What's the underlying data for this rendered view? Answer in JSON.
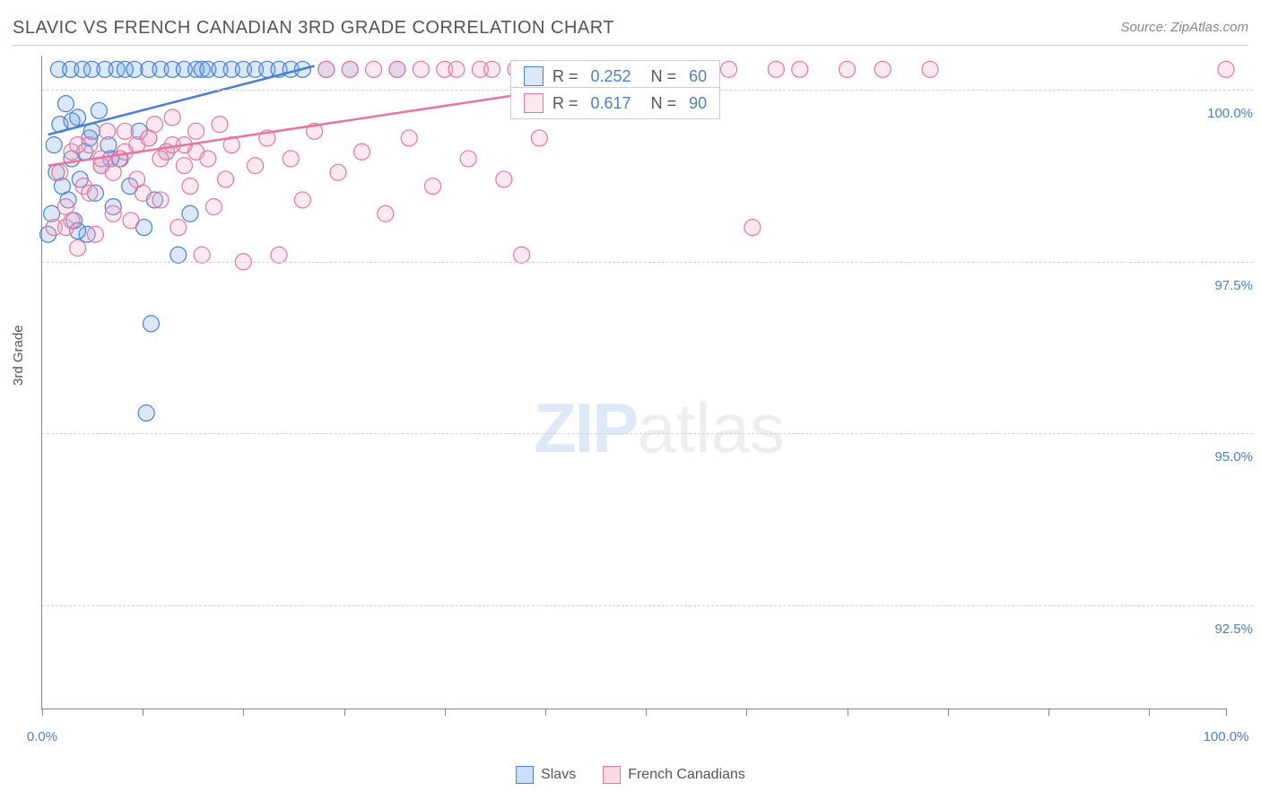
{
  "title": "SLAVIC VS FRENCH CANADIAN 3RD GRADE CORRELATION CHART",
  "source": "Source: ZipAtlas.com",
  "watermark_bold": "ZIP",
  "watermark_light": "atlas",
  "ylabel": "3rd Grade",
  "chart": {
    "type": "scatter",
    "background_color": "#ffffff",
    "grid_color": "#d0d0d0",
    "axis_color": "#888888",
    "label_color": "#4a7fd4",
    "title_color": "#555555",
    "title_fontsize": 20,
    "label_fontsize": 15,
    "marker_radius": 9,
    "marker_stroke_width": 1.2,
    "marker_fill_opacity": 0.25,
    "line_width": 2.5,
    "xlim": [
      0,
      100
    ],
    "ylim": [
      91.0,
      100.5
    ],
    "xticks": [
      0,
      8.5,
      17,
      25.5,
      34,
      42.5,
      51,
      59.5,
      68,
      76.5,
      85,
      93.5,
      100
    ],
    "xtick_labels_show": [
      0,
      100
    ],
    "xtick_labels": {
      "0": "0.0%",
      "100": "100.0%"
    },
    "yticks": [
      92.5,
      95.0,
      97.5,
      100.0
    ],
    "ytick_labels": [
      "92.5%",
      "95.0%",
      "97.5%",
      "100.0%"
    ],
    "series": [
      {
        "name": "Slavs",
        "fill_color": "#6fa3e8",
        "stroke_color": "#4a7fd4",
        "R": "0.252",
        "N": "60",
        "trend": {
          "x1": 0.5,
          "y1": 99.35,
          "x2": 23,
          "y2": 100.35
        },
        "points": [
          [
            0.5,
            97.9
          ],
          [
            0.8,
            98.2
          ],
          [
            1.0,
            99.2
          ],
          [
            1.2,
            98.8
          ],
          [
            1.4,
            100.3
          ],
          [
            1.5,
            99.5
          ],
          [
            1.7,
            98.6
          ],
          [
            2.0,
            99.8
          ],
          [
            2.2,
            98.4
          ],
          [
            2.4,
            100.3
          ],
          [
            2.5,
            99.0
          ],
          [
            2.7,
            98.1
          ],
          [
            3.0,
            99.6
          ],
          [
            3.2,
            98.7
          ],
          [
            3.4,
            100.3
          ],
          [
            3.6,
            99.1
          ],
          [
            3.8,
            97.9
          ],
          [
            4.0,
            99.3
          ],
          [
            4.2,
            100.3
          ],
          [
            4.5,
            98.5
          ],
          [
            4.8,
            99.7
          ],
          [
            5.0,
            98.9
          ],
          [
            5.3,
            100.3
          ],
          [
            5.6,
            99.2
          ],
          [
            6.0,
            98.3
          ],
          [
            6.3,
            100.3
          ],
          [
            6.6,
            99.0
          ],
          [
            7.0,
            100.3
          ],
          [
            7.4,
            98.6
          ],
          [
            7.8,
            100.3
          ],
          [
            8.2,
            99.4
          ],
          [
            8.6,
            98.0
          ],
          [
            9.0,
            100.3
          ],
          [
            9.5,
            98.4
          ],
          [
            10.0,
            100.3
          ],
          [
            10.5,
            99.1
          ],
          [
            11.0,
            100.3
          ],
          [
            11.5,
            97.6
          ],
          [
            12.0,
            100.3
          ],
          [
            12.5,
            98.2
          ],
          [
            13.0,
            100.3
          ],
          [
            13.5,
            100.3
          ],
          [
            14.0,
            100.3
          ],
          [
            15.0,
            100.3
          ],
          [
            16.0,
            100.3
          ],
          [
            17.0,
            100.3
          ],
          [
            18.0,
            100.3
          ],
          [
            19.0,
            100.3
          ],
          [
            20.0,
            100.3
          ],
          [
            21.0,
            100.3
          ],
          [
            22.0,
            100.3
          ],
          [
            24.0,
            100.3
          ],
          [
            26.0,
            100.3
          ],
          [
            30.0,
            100.3
          ],
          [
            3.0,
            97.95
          ],
          [
            9.2,
            96.6
          ],
          [
            8.8,
            95.3
          ],
          [
            2.5,
            99.55
          ],
          [
            4.2,
            99.4
          ],
          [
            5.8,
            99.0
          ]
        ]
      },
      {
        "name": "French Canadians",
        "fill_color": "#f4a6c0",
        "stroke_color": "#e8759f",
        "R": "0.617",
        "N": "90",
        "trend": {
          "x1": 0.5,
          "y1": 98.9,
          "x2": 41,
          "y2": 99.95
        },
        "points": [
          [
            1.0,
            98.0
          ],
          [
            1.5,
            98.8
          ],
          [
            2.0,
            98.3
          ],
          [
            2.5,
            99.1
          ],
          [
            3.0,
            97.7
          ],
          [
            3.5,
            98.6
          ],
          [
            4.0,
            99.2
          ],
          [
            4.5,
            97.9
          ],
          [
            5.0,
            98.9
          ],
          [
            5.5,
            99.4
          ],
          [
            6.0,
            98.2
          ],
          [
            6.5,
            99.0
          ],
          [
            7.0,
            99.4
          ],
          [
            7.5,
            98.1
          ],
          [
            8.0,
            99.2
          ],
          [
            8.5,
            98.5
          ],
          [
            9.0,
            99.3
          ],
          [
            9.5,
            99.5
          ],
          [
            10.0,
            98.4
          ],
          [
            10.5,
            99.1
          ],
          [
            11.0,
            99.6
          ],
          [
            11.5,
            98.0
          ],
          [
            12.0,
            99.2
          ],
          [
            12.5,
            98.6
          ],
          [
            13.0,
            99.4
          ],
          [
            13.5,
            97.6
          ],
          [
            14.0,
            99.0
          ],
          [
            14.5,
            98.3
          ],
          [
            15.0,
            99.5
          ],
          [
            15.5,
            98.7
          ],
          [
            16.0,
            99.2
          ],
          [
            17.0,
            97.5
          ],
          [
            18.0,
            98.9
          ],
          [
            19.0,
            99.3
          ],
          [
            20.0,
            97.6
          ],
          [
            21.0,
            99.0
          ],
          [
            22.0,
            98.4
          ],
          [
            23.0,
            99.4
          ],
          [
            24.0,
            100.3
          ],
          [
            25.0,
            98.8
          ],
          [
            26.0,
            100.3
          ],
          [
            27.0,
            99.1
          ],
          [
            28.0,
            100.3
          ],
          [
            29.0,
            98.2
          ],
          [
            30.0,
            100.3
          ],
          [
            31.0,
            99.3
          ],
          [
            32.0,
            100.3
          ],
          [
            33.0,
            98.6
          ],
          [
            34.0,
            100.3
          ],
          [
            35.0,
            100.3
          ],
          [
            36.0,
            99.0
          ],
          [
            37.0,
            100.3
          ],
          [
            38.0,
            100.3
          ],
          [
            39.0,
            98.7
          ],
          [
            40.0,
            100.3
          ],
          [
            41.0,
            100.3
          ],
          [
            42.0,
            99.3
          ],
          [
            43.0,
            100.3
          ],
          [
            44.0,
            100.3
          ],
          [
            45.0,
            100.3
          ],
          [
            46.0,
            100.3
          ],
          [
            47.0,
            100.3
          ],
          [
            48.0,
            100.3
          ],
          [
            49.0,
            100.3
          ],
          [
            50.0,
            100.3
          ],
          [
            52.0,
            100.3
          ],
          [
            54.0,
            100.3
          ],
          [
            56.0,
            100.3
          ],
          [
            58.0,
            100.3
          ],
          [
            60.0,
            98.0
          ],
          [
            62.0,
            100.3
          ],
          [
            64.0,
            100.3
          ],
          [
            68.0,
            100.3
          ],
          [
            71.0,
            100.3
          ],
          [
            75.0,
            100.3
          ],
          [
            100.0,
            100.3
          ],
          [
            40.5,
            97.6
          ],
          [
            2.0,
            98.0
          ],
          [
            2.5,
            98.1
          ],
          [
            3.0,
            99.2
          ],
          [
            4.0,
            98.5
          ],
          [
            5.0,
            99.0
          ],
          [
            6.0,
            98.8
          ],
          [
            7.0,
            99.1
          ],
          [
            8.0,
            98.7
          ],
          [
            9.0,
            99.3
          ],
          [
            10.0,
            99.0
          ],
          [
            11.0,
            99.2
          ],
          [
            12.0,
            98.9
          ],
          [
            13.0,
            99.1
          ]
        ]
      }
    ]
  },
  "legend_bottom": {
    "items": [
      {
        "label": "Slavs",
        "fill": "#c9defb",
        "stroke": "#4a7fd4"
      },
      {
        "label": "French Canadians",
        "fill": "#fbd9e5",
        "stroke": "#e8759f"
      }
    ]
  }
}
